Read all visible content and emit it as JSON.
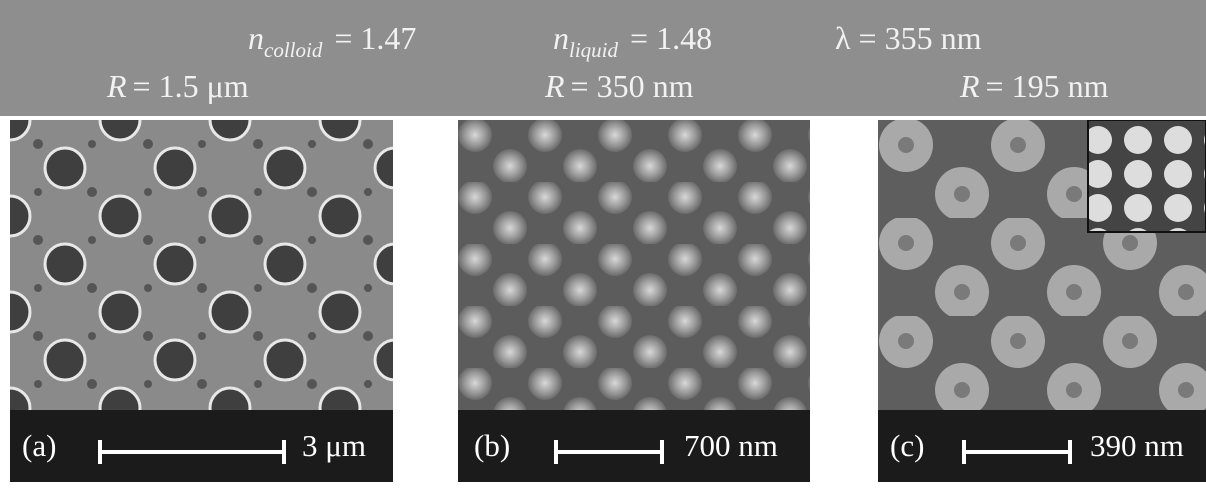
{
  "header": {
    "row1": [
      {
        "symbol": "n",
        "subscript": "colloid",
        "text": "= 1.47"
      },
      {
        "symbol": "n",
        "subscript": "liquid",
        "text": "= 1.48"
      },
      {
        "text": "λ = 355 nm"
      }
    ],
    "row2": [
      {
        "symbol": "R",
        "text": "= 1.5 μm"
      },
      {
        "symbol": "R",
        "text": "= 350 nm"
      },
      {
        "symbol": "R",
        "text": "= 195 nm"
      }
    ]
  },
  "panels": [
    {
      "label": "(a)",
      "scale": "3 μm"
    },
    {
      "label": "(b)",
      "scale": "700 nm"
    },
    {
      "label": "(c)",
      "scale": "390 nm"
    }
  ]
}
